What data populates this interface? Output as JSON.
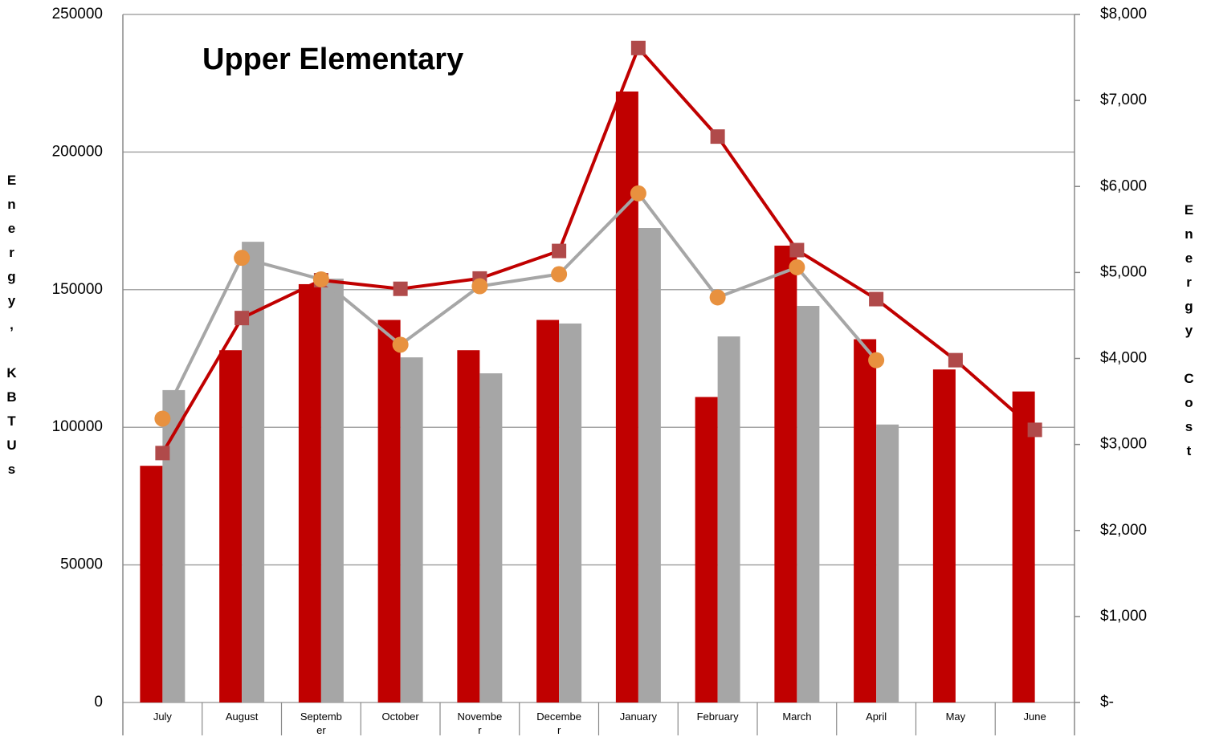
{
  "chart_data": {
    "type": "combo",
    "title": "Upper Elementary",
    "y_label": "Energy, KBTUs",
    "y2_label": "Energy Cost",
    "categories": [
      "July",
      "August",
      "September",
      "October",
      "November",
      "December",
      "January",
      "February",
      "March",
      "April",
      "May",
      "June"
    ],
    "series": [
      {
        "type": "bar",
        "color": "#c00000",
        "values": [
          86000,
          128000,
          152000,
          139000,
          128000,
          139000,
          222000,
          111000,
          166000,
          132000,
          121000,
          113000
        ]
      },
      {
        "type": "bar",
        "color": "#a6a6a6",
        "values": [
          113500,
          167400,
          154000,
          125400,
          119600,
          137700,
          172400,
          133000,
          144100,
          101000,
          null,
          null
        ]
      },
      {
        "type": "line",
        "axis": "y2",
        "color": "#c00000",
        "marker": "square",
        "marker_color": "#b04a4a",
        "values": [
          2900,
          4470,
          4910,
          4810,
          4930,
          5250,
          7610,
          6580,
          5260,
          4690,
          3980,
          3170
        ]
      },
      {
        "type": "line",
        "axis": "y2",
        "color": "#a6a6a6",
        "marker": "circle",
        "marker_color": "#e8913f",
        "values": [
          3300,
          5170,
          4920,
          4160,
          4840,
          4980,
          5920,
          4710,
          5060,
          3980,
          null,
          null
        ]
      }
    ],
    "ylim": [
      0,
      250000
    ],
    "yticks": [
      0,
      50000,
      100000,
      150000,
      200000,
      250000
    ],
    "y2lim": [
      0,
      8000
    ],
    "y2ticks": [
      {
        "value": 0,
        "label": "$-"
      },
      {
        "value": 1000,
        "label": "$1,000"
      },
      {
        "value": 2000,
        "label": "$2,000"
      },
      {
        "value": 3000,
        "label": "$3,000"
      },
      {
        "value": 4000,
        "label": "$4,000"
      },
      {
        "value": 5000,
        "label": "$5,000"
      },
      {
        "value": 6000,
        "label": "$6,000"
      },
      {
        "value": 7000,
        "label": "$7,000"
      },
      {
        "value": 8000,
        "label": "$8,000"
      }
    ],
    "grid": true
  }
}
